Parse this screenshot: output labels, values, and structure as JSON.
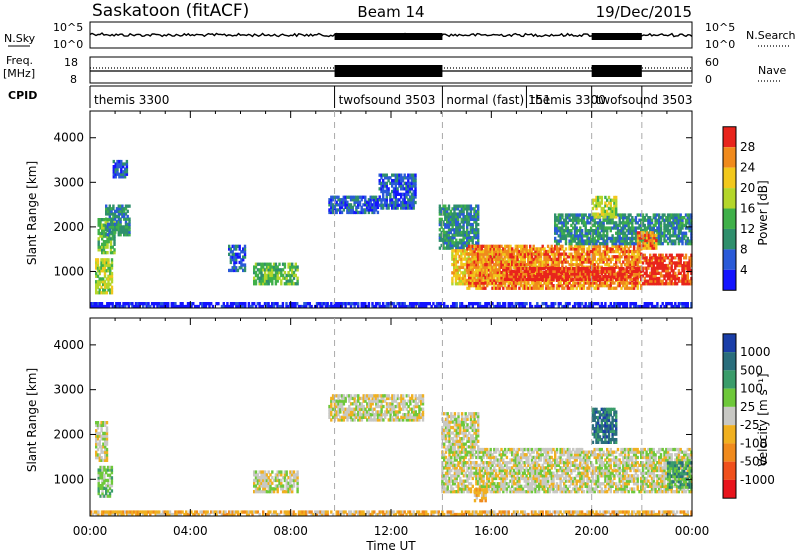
{
  "header": {
    "radar": "Saskatoon (fitACF)",
    "beam": "Beam 14",
    "date": "19/Dec/2015"
  },
  "sky_panel": {
    "left_label": "N.Sky",
    "right_label": "N.Search",
    "left_ticks": [
      "10^5",
      "10^0"
    ],
    "right_ticks": [
      "10^5",
      "10^0"
    ]
  },
  "freq_panel": {
    "left_label": "Freq.",
    "left_unit": "[MHz]",
    "right_label": "Nave",
    "left_ticks": [
      "18",
      "8"
    ],
    "right_ticks": [
      "60",
      "0"
    ]
  },
  "cpid": {
    "label": "CPID",
    "segments": [
      {
        "name": "themis 3300",
        "start": 0.0
      },
      {
        "name": "twofsound 3503",
        "start": 9.75
      },
      {
        "name": "normal (fast) 151",
        "start": 14.05
      },
      {
        "name": "themis 3300",
        "start": 17.4
      },
      {
        "name": "twofsound 3503",
        "start": 20.0
      },
      {
        "name": "",
        "start": 22.0
      }
    ]
  },
  "x_axis": {
    "label": "Time UT",
    "ticks": [
      "00:00",
      "04:00",
      "08:00",
      "12:00",
      "16:00",
      "20:00",
      "00:00"
    ]
  },
  "chart_data": [
    {
      "type": "heatmap",
      "name": "power",
      "ylabel": "Slant Range [km]",
      "ylim": [
        180,
        4600
      ],
      "yticks": [
        "1000",
        "2000",
        "3000",
        "4000"
      ],
      "xlim_hours": [
        0,
        24
      ],
      "colorbar_label": "Power [dB]",
      "colorbar_ticks": [
        "4",
        "8",
        "12",
        "16",
        "20",
        "24",
        "28"
      ],
      "colors": [
        "#1414ff",
        "#2a5ad8",
        "#2f8f6c",
        "#3fb049",
        "#b4d62a",
        "#f2c81c",
        "#f08a1c",
        "#e8241c"
      ],
      "regions": [
        {
          "t0": 0.2,
          "t1": 0.9,
          "r0": 500,
          "r1": 1300,
          "level": 4
        },
        {
          "t0": 0.3,
          "t1": 1.0,
          "r0": 1400,
          "r1": 2200,
          "level": 3
        },
        {
          "t0": 0.6,
          "t1": 1.6,
          "r0": 1800,
          "r1": 2500,
          "level": 2
        },
        {
          "t0": 0.9,
          "t1": 1.5,
          "r0": 3100,
          "r1": 3500,
          "level": 1
        },
        {
          "t0": 5.5,
          "t1": 6.2,
          "r0": 1000,
          "r1": 1600,
          "level": 1
        },
        {
          "t0": 6.5,
          "t1": 8.3,
          "r0": 700,
          "r1": 1200,
          "level": 3
        },
        {
          "t0": 9.5,
          "t1": 11.5,
          "r0": 2300,
          "r1": 2700,
          "level": 1
        },
        {
          "t0": 11.5,
          "t1": 13.0,
          "r0": 2400,
          "r1": 3200,
          "level": 1
        },
        {
          "t0": 13.9,
          "t1": 15.5,
          "r0": 1500,
          "r1": 2500,
          "level": 2
        },
        {
          "t0": 14.4,
          "t1": 18.0,
          "r0": 700,
          "r1": 1500,
          "level": 5
        },
        {
          "t0": 15.0,
          "t1": 22.0,
          "r0": 600,
          "r1": 1600,
          "level": 6
        },
        {
          "t0": 16.5,
          "t1": 22.0,
          "r0": 800,
          "r1": 1100,
          "level": 7
        },
        {
          "t0": 22.0,
          "t1": 24.0,
          "r0": 700,
          "r1": 1400,
          "level": 7
        },
        {
          "t0": 18.5,
          "t1": 24.0,
          "r0": 1600,
          "r1": 2300,
          "level": 2
        },
        {
          "t0": 20.0,
          "t1": 21.0,
          "r0": 2200,
          "r1": 2700,
          "level": 4
        },
        {
          "t0": 21.8,
          "t1": 22.6,
          "r0": 1500,
          "r1": 1900,
          "level": 6
        },
        {
          "t0": 0.0,
          "t1": 24.0,
          "r0": 190,
          "r1": 320,
          "level": 0
        }
      ]
    },
    {
      "type": "heatmap",
      "name": "velocity",
      "ylabel": "Slant Range [km]",
      "ylim": [
        180,
        4600
      ],
      "yticks": [
        "1000",
        "2000",
        "3000",
        "4000"
      ],
      "xlim_hours": [
        0,
        24
      ],
      "colorbar_label": "Velocity [m s⁻¹]",
      "colorbar_ticks": [
        "1000",
        "500",
        "100",
        "25",
        "-25",
        "-100",
        "-500",
        "-1000"
      ],
      "colors": [
        "#1a3ea8",
        "#2a6e7c",
        "#3a9c6a",
        "#6ec83a",
        "#c8c8c4",
        "#f0b020",
        "#f08a1c",
        "#f0501c",
        "#e8141c"
      ],
      "regions": [
        {
          "t0": 0.2,
          "t1": 0.7,
          "r0": 1400,
          "r1": 2300,
          "level": 4
        },
        {
          "t0": 0.3,
          "t1": 0.9,
          "r0": 600,
          "r1": 1300,
          "level": 3
        },
        {
          "t0": 6.5,
          "t1": 8.3,
          "r0": 700,
          "r1": 1200,
          "level": 4
        },
        {
          "t0": 9.5,
          "t1": 13.3,
          "r0": 2300,
          "r1": 2900,
          "level": 4
        },
        {
          "t0": 14.0,
          "t1": 24.0,
          "r0": 700,
          "r1": 1700,
          "level": 4
        },
        {
          "t0": 14.0,
          "t1": 15.5,
          "r0": 1700,
          "r1": 2500,
          "level": 4
        },
        {
          "t0": 15.3,
          "t1": 15.8,
          "r0": 500,
          "r1": 800,
          "level": 5
        },
        {
          "t0": 20.0,
          "t1": 21.0,
          "r0": 1800,
          "r1": 2600,
          "level": 1
        },
        {
          "t0": 23.0,
          "t1": 24.0,
          "r0": 800,
          "r1": 1400,
          "level": 2
        },
        {
          "t0": 0.0,
          "t1": 24.0,
          "r0": 190,
          "r1": 300,
          "level": 5
        }
      ]
    }
  ]
}
